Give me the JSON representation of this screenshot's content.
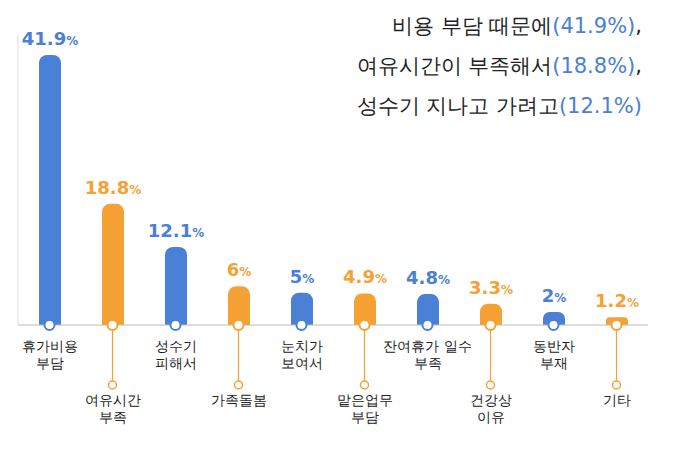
{
  "chart_data": {
    "type": "bar",
    "title": [
      "비용 부담 때문에(41.9%),",
      "여유시간이 부족해서(18.8%),",
      "성수기 지나고 가려고(12.1%)"
    ],
    "categories": [
      "휴가비용 부담",
      "여유시간 부족",
      "성수기 피해서",
      "가족돌봄",
      "눈치가 보여서",
      "맡은업무 부담",
      "잔여휴가 일수 부족",
      "건강상 이유",
      "동반자 부재",
      "기타"
    ],
    "values": [
      41.9,
      18.8,
      12.1,
      6,
      5,
      4.9,
      4.8,
      3.3,
      2,
      1.2
    ],
    "value_labels": [
      "41.9%",
      "18.8%",
      "12.1%",
      "6%",
      "5%",
      "4.9%",
      "4.8%",
      "3.3%",
      "2%",
      "1.2%"
    ],
    "colors": [
      "#4a80d6",
      "#f5a134",
      "#4a80d6",
      "#f5a134",
      "#4a80d6",
      "#f5a134",
      "#4a80d6",
      "#f5a134",
      "#4a80d6",
      "#f5a134"
    ],
    "ylim": [
      0,
      45
    ],
    "data_labels": true,
    "tick_labels": "x",
    "grid": false
  }
}
